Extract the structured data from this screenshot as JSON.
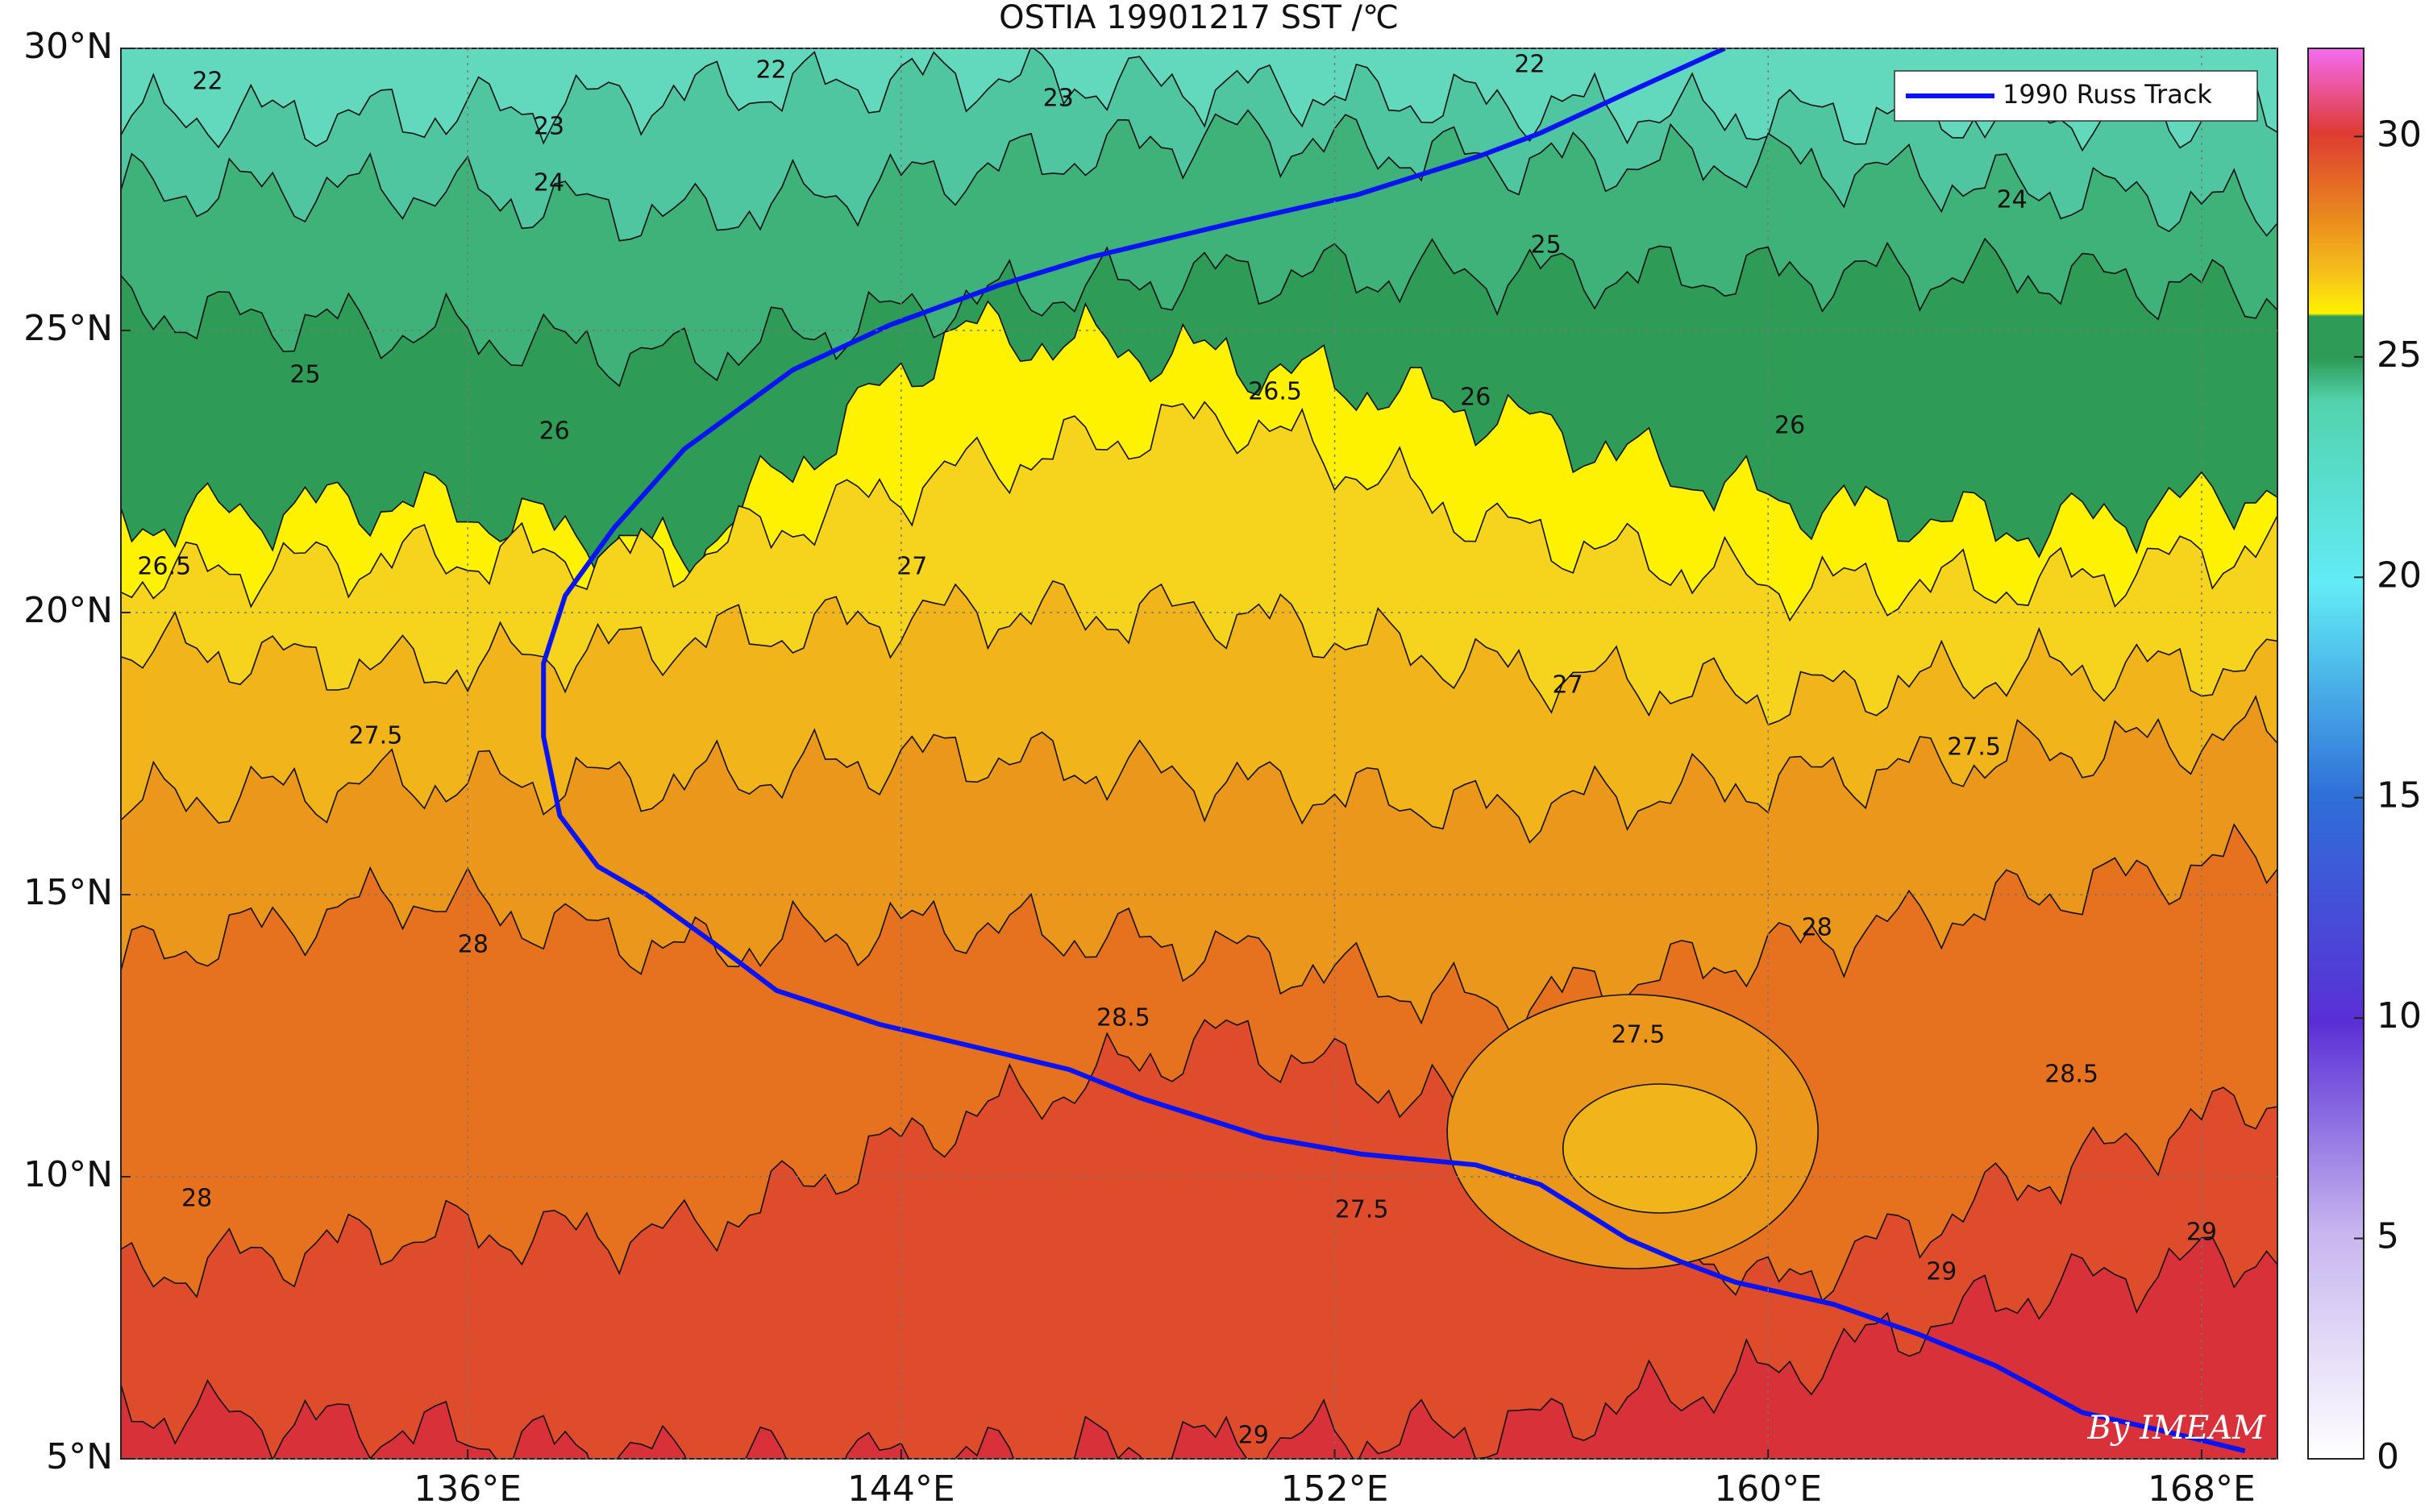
{
  "chart_data": {
    "type": "line",
    "title": "OSTIA 19901217 SST /℃",
    "xlim": [
      129.6,
      169.4
    ],
    "ylim": [
      5,
      30
    ],
    "xticks": [
      {
        "value": 136,
        "label": "136°E"
      },
      {
        "value": 144,
        "label": "144°E"
      },
      {
        "value": 152,
        "label": "152°E"
      },
      {
        "value": 160,
        "label": "160°E"
      },
      {
        "value": 168,
        "label": "168°E"
      }
    ],
    "yticks": [
      {
        "value": 5,
        "label": "5°N"
      },
      {
        "value": 10,
        "label": "10°N"
      },
      {
        "value": 15,
        "label": "15°N"
      },
      {
        "value": 20,
        "label": "20°N"
      },
      {
        "value": 25,
        "label": "25°N"
      },
      {
        "value": 30,
        "label": "30°N"
      }
    ],
    "grid": true,
    "legend": "upper right",
    "series": [
      {
        "name": "1990 Russ Track",
        "color": "#0a14f0",
        "x": [
          168.8,
          167.4,
          165.8,
          164.2,
          162.8,
          161.2,
          159.4,
          158.4,
          157.4,
          155.8,
          154.6,
          152.5,
          150.7,
          148.4,
          147.1,
          145.8,
          143.6,
          141.7,
          140.6,
          139.3,
          138.4,
          137.7,
          137.4,
          137.4,
          137.8,
          138.7,
          140.0,
          142.0,
          143.8,
          145.8,
          147.5,
          150.1,
          152.4,
          154.7,
          155.8,
          157.6,
          159.2
        ],
        "y": [
          5.14,
          5.47,
          5.82,
          6.65,
          7.2,
          7.74,
          8.13,
          8.49,
          8.9,
          9.86,
          10.21,
          10.4,
          10.7,
          11.4,
          11.9,
          12.2,
          12.7,
          13.3,
          14.1,
          15.0,
          15.5,
          16.4,
          17.8,
          19.1,
          20.3,
          21.5,
          22.9,
          24.3,
          25.1,
          25.8,
          26.3,
          26.9,
          27.4,
          28.1,
          28.5,
          29.3,
          30.0
        ]
      }
    ],
    "colorbar": {
      "ylim": [
        0,
        32
      ],
      "yticks": [
        0,
        5,
        10,
        15,
        20,
        25,
        30
      ]
    },
    "contour_labels": {
      "x": [
        131.2,
        141.6,
        155.6,
        137.5,
        146.9,
        137.5,
        164.5,
        133.0,
        155.9,
        137.6,
        154.6,
        130.4,
        150.9,
        144.2,
        156.3,
        134.3,
        163.8,
        157.6,
        136.1,
        160.9,
        131.0,
        148.1,
        165.6,
        163.2,
        168.0,
        150.5,
        152.5,
        160.4
      ],
      "y": [
        29.4,
        29.6,
        29.7,
        28.6,
        29.1,
        27.6,
        27.3,
        24.2,
        26.5,
        23.2,
        23.8,
        20.8,
        23.9,
        20.8,
        18.7,
        17.8,
        17.6,
        12.5,
        14.1,
        14.4,
        9.6,
        12.8,
        11.8,
        8.3,
        9.0,
        5.4,
        9.4,
        23.3
      ],
      "values": [
        22,
        22,
        22,
        23,
        23,
        24,
        24,
        25,
        25,
        26,
        26,
        26.5,
        26.5,
        27,
        27,
        27.5,
        27.5,
        27.5,
        28,
        28,
        28,
        28.5,
        28.5,
        29,
        29,
        29,
        27.5,
        26
      ]
    },
    "watermark": "By IMEAM"
  }
}
